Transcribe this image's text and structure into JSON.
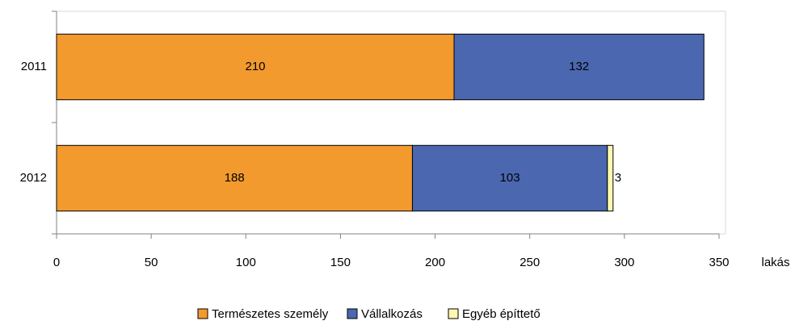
{
  "chart_data": {
    "type": "stacked-barh",
    "categories": [
      "2011",
      "2012"
    ],
    "series": [
      {
        "name": "Természetes személy",
        "color": "#f39a2e",
        "values": [
          210,
          188
        ]
      },
      {
        "name": "Vállalkozás",
        "color": "#4a67b0",
        "values": [
          132,
          103
        ]
      },
      {
        "name": "Egyéb építtető",
        "color": "#fdf9b0",
        "values": [
          null,
          3
        ]
      }
    ],
    "xlim": [
      0,
      350
    ],
    "xticks": [
      0,
      50,
      100,
      150,
      200,
      250,
      300,
      350
    ],
    "xlabel": "lakás",
    "legend": "bottom"
  }
}
